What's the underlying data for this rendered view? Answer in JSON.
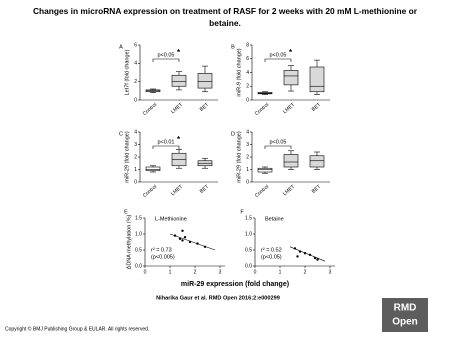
{
  "title": "Changes in microRNA expression on treatment of RASF for 2 weeks with 20 mM L-methionine or betaine.",
  "x_label": "miR-29 expression (fold change)",
  "citation": "Niharika Gaur et al. RMD Open 2016;2:e000299",
  "copyright": "Copyright © BMJ Publishing Group & EULAR. All rights reserved.",
  "logo_lines": [
    "RMD",
    "Open"
  ],
  "chart_data": [
    {
      "type": "box",
      "panel": "A",
      "ylabel": "Let7f (fold change)",
      "categories": [
        "Control",
        "LMET",
        "BET"
      ],
      "boxes": [
        {
          "min": 0.8,
          "q1": 0.9,
          "median": 1.0,
          "q3": 1.1,
          "max": 1.2
        },
        {
          "min": 1.1,
          "q1": 1.5,
          "median": 2.0,
          "q3": 2.7,
          "max": 3.1
        },
        {
          "min": 0.9,
          "q1": 1.3,
          "median": 2.0,
          "q3": 2.9,
          "max": 3.7
        }
      ],
      "ylim": [
        0,
        6
      ],
      "yticks": [
        0,
        2,
        4,
        6
      ],
      "annotation": "p<0.05",
      "star": "*",
      "colors": [
        "#ffffff",
        "#d9d9d9",
        "#d9d9d9"
      ]
    },
    {
      "type": "box",
      "panel": "B",
      "ylabel": "miR-9 (fold change)",
      "categories": [
        "Control",
        "LMET",
        "BET"
      ],
      "boxes": [
        {
          "min": 0.8,
          "q1": 0.9,
          "median": 1.0,
          "q3": 1.1,
          "max": 1.2
        },
        {
          "min": 1.3,
          "q1": 2.2,
          "median": 3.5,
          "q3": 4.3,
          "max": 5.0
        },
        {
          "min": 0.8,
          "q1": 1.2,
          "median": 2.0,
          "q3": 4.8,
          "max": 5.8
        }
      ],
      "ylim": [
        0,
        8
      ],
      "yticks": [
        0,
        2,
        4,
        6,
        8
      ],
      "annotation": "p<0.05",
      "star": "*",
      "colors": [
        "#ffffff",
        "#d9d9d9",
        "#d9d9d9"
      ]
    },
    {
      "type": "box",
      "panel": "C",
      "ylabel": "miR-29 (fold change)",
      "categories": [
        "Control",
        "LMET",
        "BET"
      ],
      "boxes": [
        {
          "min": 0.8,
          "q1": 0.9,
          "median": 1.0,
          "q3": 1.2,
          "max": 1.3
        },
        {
          "min": 1.1,
          "q1": 1.3,
          "median": 1.8,
          "q3": 2.3,
          "max": 2.6
        },
        {
          "min": 1.1,
          "q1": 1.3,
          "median": 1.5,
          "q3": 1.7,
          "max": 1.9
        }
      ],
      "ylim": [
        0,
        4
      ],
      "yticks": [
        0,
        1,
        2,
        3,
        4
      ],
      "annotation": "p<0.01",
      "star": "*",
      "colors": [
        "#ffffff",
        "#d9d9d9",
        "#d9d9d9"
      ]
    },
    {
      "type": "box",
      "panel": "D",
      "ylabel": "miR-29 (fold change)",
      "categories": [
        "Control",
        "LMET",
        "BET"
      ],
      "boxes": [
        {
          "min": 0.7,
          "q1": 0.8,
          "median": 1.0,
          "q3": 1.1,
          "max": 1.2
        },
        {
          "min": 1.0,
          "q1": 1.2,
          "median": 1.6,
          "q3": 2.2,
          "max": 2.5
        },
        {
          "min": 1.0,
          "q1": 1.2,
          "median": 1.7,
          "q3": 2.1,
          "max": 2.4
        }
      ],
      "ylim": [
        0,
        4
      ],
      "yticks": [
        0,
        1,
        2,
        3,
        4
      ],
      "annotation": "p<0.05",
      "colors": [
        "#ffffff",
        "#d9d9d9",
        "#d9d9d9"
      ]
    },
    {
      "type": "scatter",
      "panel": "E",
      "ylabel": "ΔDNA methylation (%)",
      "title": "L-Methionine",
      "annotation": [
        "r² = 0.73",
        "(p<0.005)"
      ],
      "x": [
        1.2,
        1.4,
        1.5,
        1.6,
        1.8,
        2.1,
        2.4,
        1.5
      ],
      "values": [
        0.95,
        0.85,
        0.8,
        0.9,
        0.75,
        0.7,
        0.6,
        1.1
      ],
      "fit_x": [
        1.0,
        2.8
      ],
      "fit_y": [
        1.0,
        0.5
      ],
      "xlim": [
        0,
        3.2
      ],
      "xticks": [
        0,
        1,
        2,
        3
      ],
      "ylim": [
        0,
        1.5
      ],
      "yticks": [
        {
          "value": 0,
          "label": "0.0"
        },
        {
          "value": 0.5,
          "label": "0.5"
        },
        {
          "value": 1,
          "label": "1.0"
        },
        {
          "value": 1.5,
          "label": "1.5"
        }
      ]
    },
    {
      "type": "scatter",
      "panel": "F",
      "title": "Betaine",
      "annotation": [
        "r² = 0.52",
        "(p<0.05)"
      ],
      "x": [
        1.6,
        1.8,
        2.0,
        2.2,
        1.7,
        2.4,
        2.5
      ],
      "values": [
        0.55,
        0.45,
        0.4,
        0.35,
        0.3,
        0.25,
        0.2
      ],
      "fit_x": [
        1.4,
        2.8
      ],
      "fit_y": [
        0.6,
        0.15
      ],
      "xlim": [
        0,
        3.2
      ],
      "xticks": [
        0,
        1,
        2,
        3
      ],
      "ylim": [
        0,
        1.5
      ],
      "yticks": [
        {
          "value": 0,
          "label": "0.0"
        },
        {
          "value": 0.5,
          "label": "0.5"
        },
        {
          "value": 1,
          "label": "1.0"
        },
        {
          "value": 1.5,
          "label": "1.5"
        }
      ]
    }
  ]
}
